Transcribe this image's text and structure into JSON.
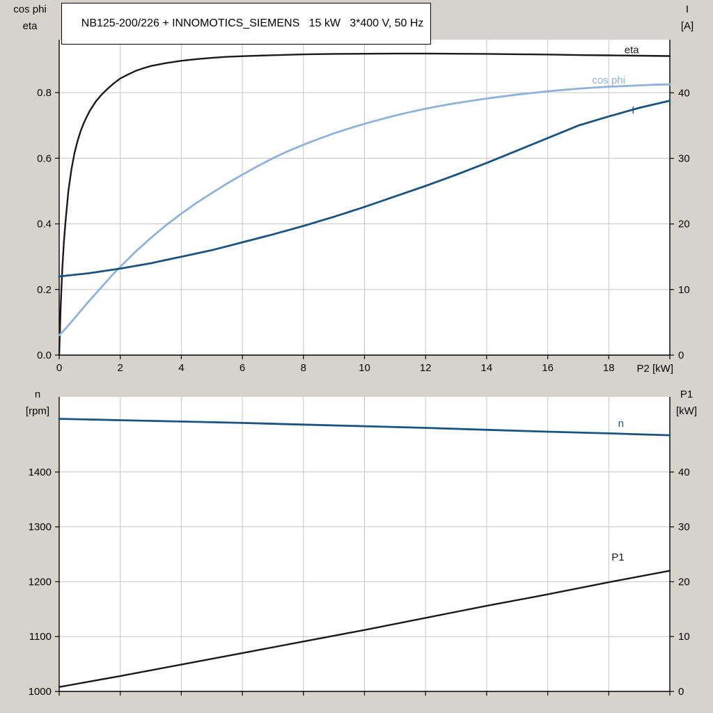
{
  "title": "NB125-200/226 + INNOMOTICS_SIEMENS   15 kW   3*400 V, 50 Hz",
  "colors": {
    "background": "#d6d3cc",
    "plot_background": "#ffffff",
    "grid": "#c6c6c6",
    "axis": "#000000",
    "eta": "#1a1a1a",
    "cos_phi": "#8fb2d8",
    "current": "#1b5380",
    "speed": "#1b5380",
    "p1": "#1a1a1a"
  },
  "chart_data": [
    {
      "type": "line",
      "name": "electrical-curves",
      "grid": true,
      "x": {
        "range": [
          0,
          20
        ],
        "ticks": [
          0,
          2,
          4,
          6,
          8,
          10,
          12,
          14,
          16,
          18,
          20
        ],
        "tick_labels": [
          "0",
          "2",
          "4",
          "6",
          "8",
          "10",
          "12",
          "14",
          "16",
          "18",
          ""
        ],
        "label": "P2 [kW]"
      },
      "y_left": {
        "range": [
          0,
          0.9613
        ],
        "ticks": [
          0,
          0.2,
          0.4,
          0.6,
          0.8
        ],
        "tick_labels": [
          "0.0",
          "0.2",
          "0.4",
          "0.6",
          "0.8"
        ],
        "title_lines": [
          "cos phi",
          "eta"
        ]
      },
      "y_right": {
        "range": [
          0,
          48.1
        ],
        "ticks": [
          0,
          10,
          20,
          30,
          40
        ],
        "tick_labels": [
          "0",
          "10",
          "20",
          "30",
          "40"
        ],
        "title_lines": [
          "I",
          "[A]"
        ]
      },
      "series": [
        {
          "name": "eta",
          "axis": "left",
          "color_key": "eta",
          "width": 2.4,
          "label": "eta",
          "label_at": [
            18.75,
            0.93
          ],
          "points": [
            [
              0,
              0
            ],
            [
              0.05,
              0.15
            ],
            [
              0.1,
              0.26
            ],
            [
              0.15,
              0.34
            ],
            [
              0.2,
              0.4
            ],
            [
              0.3,
              0.5
            ],
            [
              0.4,
              0.565
            ],
            [
              0.5,
              0.615
            ],
            [
              0.6,
              0.652
            ],
            [
              0.7,
              0.682
            ],
            [
              0.8,
              0.706
            ],
            [
              0.9,
              0.726
            ],
            [
              1,
              0.744
            ],
            [
              1.2,
              0.773
            ],
            [
              1.4,
              0.795
            ],
            [
              1.6,
              0.813
            ],
            [
              1.8,
              0.829
            ],
            [
              2,
              0.843
            ],
            [
              2.25,
              0.855
            ],
            [
              2.5,
              0.866
            ],
            [
              2.75,
              0.874
            ],
            [
              3,
              0.881
            ],
            [
              3.5,
              0.89
            ],
            [
              4,
              0.897
            ],
            [
              4.5,
              0.902
            ],
            [
              5,
              0.906
            ],
            [
              5.5,
              0.909
            ],
            [
              6,
              0.911
            ],
            [
              7,
              0.914
            ],
            [
              8,
              0.9165
            ],
            [
              9,
              0.918
            ],
            [
              10,
              0.9185
            ],
            [
              11,
              0.919
            ],
            [
              12,
              0.919
            ],
            [
              13,
              0.9185
            ],
            [
              14,
              0.918
            ],
            [
              15,
              0.917
            ],
            [
              16,
              0.916
            ],
            [
              17,
              0.9145
            ],
            [
              18,
              0.9135
            ],
            [
              19,
              0.9125
            ],
            [
              20,
              0.9115
            ]
          ]
        },
        {
          "name": "cos-phi",
          "axis": "left",
          "color_key": "cos_phi",
          "width": 2.8,
          "label": "cos phi",
          "label_at": [
            18.0,
            0.838
          ],
          "points": [
            [
              0,
              0.06
            ],
            [
              0.25,
              0.085
            ],
            [
              0.5,
              0.112
            ],
            [
              0.75,
              0.14
            ],
            [
              1,
              0.167
            ],
            [
              1.25,
              0.193
            ],
            [
              1.5,
              0.219
            ],
            [
              1.75,
              0.245
            ],
            [
              2,
              0.269
            ],
            [
              2.5,
              0.315
            ],
            [
              3,
              0.357
            ],
            [
              3.5,
              0.396
            ],
            [
              4,
              0.431
            ],
            [
              4.5,
              0.464
            ],
            [
              5,
              0.494
            ],
            [
              5.5,
              0.523
            ],
            [
              6,
              0.55
            ],
            [
              6.5,
              0.576
            ],
            [
              7,
              0.6
            ],
            [
              7.5,
              0.622
            ],
            [
              8,
              0.641
            ],
            [
              8.5,
              0.659
            ],
            [
              9,
              0.676
            ],
            [
              9.5,
              0.691
            ],
            [
              10,
              0.705
            ],
            [
              10.5,
              0.718
            ],
            [
              11,
              0.73
            ],
            [
              11.5,
              0.741
            ],
            [
              12,
              0.751
            ],
            [
              12.5,
              0.76
            ],
            [
              13,
              0.768
            ],
            [
              13.5,
              0.775
            ],
            [
              14,
              0.782
            ],
            [
              14.5,
              0.788
            ],
            [
              15,
              0.794
            ],
            [
              15.5,
              0.799
            ],
            [
              16,
              0.804
            ],
            [
              16.5,
              0.808
            ],
            [
              17,
              0.812
            ],
            [
              17.5,
              0.815
            ],
            [
              18,
              0.818
            ],
            [
              18.5,
              0.82
            ],
            [
              19,
              0.822
            ],
            [
              19.5,
              0.824
            ],
            [
              20,
              0.825
            ]
          ]
        },
        {
          "name": "current",
          "axis": "right",
          "color_key": "current",
          "width": 2.8,
          "label": "I",
          "label_at": [
            18.8,
            37.4
          ],
          "points": [
            [
              0,
              12
            ],
            [
              1,
              12.5
            ],
            [
              2,
              13.2
            ],
            [
              3,
              14
            ],
            [
              4,
              15
            ],
            [
              5,
              16
            ],
            [
              6,
              17.2
            ],
            [
              7,
              18.4
            ],
            [
              8,
              19.7
            ],
            [
              9,
              21.1
            ],
            [
              10,
              22.6
            ],
            [
              11,
              24.2
            ],
            [
              12,
              25.8
            ],
            [
              13,
              27.5
            ],
            [
              14,
              29.3
            ],
            [
              15,
              31.2
            ],
            [
              16,
              33.1
            ],
            [
              17,
              35
            ],
            [
              18,
              36.4
            ],
            [
              19,
              37.7
            ],
            [
              20,
              38.8
            ]
          ]
        }
      ]
    },
    {
      "type": "line",
      "name": "speed-power-curves",
      "grid": true,
      "x": {
        "range": [
          0,
          20
        ],
        "ticks": [
          0,
          2,
          4,
          6,
          8,
          10,
          12,
          14,
          16,
          18,
          20
        ],
        "tick_labels": [
          "",
          "",
          "",
          "",
          "",
          "",
          "",
          "",
          "",
          "",
          ""
        ],
        "label": ""
      },
      "y_left": {
        "range": [
          1000,
          1537
        ],
        "ticks": [
          1000,
          1100,
          1200,
          1300,
          1400
        ],
        "tick_labels": [
          "1000",
          "1100",
          "1200",
          "1300",
          "1400"
        ],
        "title_lines": [
          "n",
          "[rpm]"
        ]
      },
      "y_right": {
        "range": [
          0,
          53.7
        ],
        "ticks": [
          0,
          10,
          20,
          30,
          40
        ],
        "tick_labels": [
          "0",
          "10",
          "20",
          "30",
          "40"
        ],
        "title_lines": [
          "P1",
          "[kW]"
        ]
      },
      "series": [
        {
          "name": "speed",
          "axis": "left",
          "color_key": "speed",
          "width": 2.8,
          "label": "n",
          "label_at": [
            18.4,
            1489
          ],
          "points": [
            [
              0,
              1497
            ],
            [
              2,
              1494.5
            ],
            [
              4,
              1492
            ],
            [
              6,
              1489.5
            ],
            [
              8,
              1486.5
            ],
            [
              10,
              1483.5
            ],
            [
              12,
              1480.5
            ],
            [
              14,
              1477
            ],
            [
              16,
              1473.5
            ],
            [
              18,
              1470.5
            ],
            [
              20,
              1467
            ]
          ]
        },
        {
          "name": "p1",
          "axis": "right",
          "color_key": "p1",
          "width": 2.4,
          "label": "P1",
          "label_at": [
            18.3,
            24.5
          ],
          "points": [
            [
              0,
              0.8
            ],
            [
              2,
              2.8
            ],
            [
              4,
              4.9
            ],
            [
              6,
              7
            ],
            [
              8,
              9.1
            ],
            [
              10,
              11.2
            ],
            [
              12,
              13.4
            ],
            [
              14,
              15.6
            ],
            [
              16,
              17.7
            ],
            [
              18,
              19.9
            ],
            [
              20,
              22
            ]
          ]
        }
      ]
    }
  ]
}
